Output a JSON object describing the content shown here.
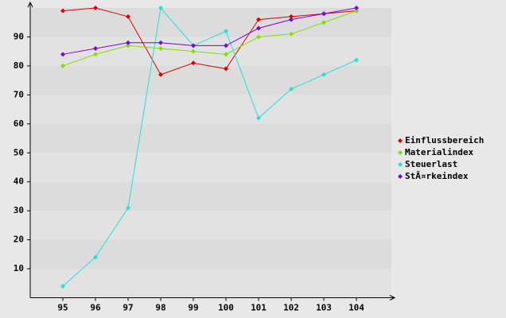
{
  "chart_data": {
    "type": "line",
    "categories": [
      "95",
      "96",
      "97",
      "98",
      "99",
      "100",
      "101",
      "102",
      "103",
      "104"
    ],
    "series": [
      {
        "name": "Einflussbereich",
        "color": "#e00000",
        "values": [
          99,
          100,
          97,
          77,
          81,
          79,
          96,
          97,
          98,
          99
        ]
      },
      {
        "name": "Materialindex",
        "color": "#80e000",
        "values": [
          80,
          84,
          87,
          86,
          85,
          84,
          90,
          91,
          95,
          99
        ]
      },
      {
        "name": "Steuerlast",
        "color": "#20e0e0",
        "values": [
          4,
          14,
          31,
          100,
          87,
          92,
          62,
          72,
          77,
          82
        ]
      },
      {
        "name": "StÃ¤rkeindex",
        "color": "#8000e0",
        "values": [
          84,
          86,
          88,
          88,
          87,
          87,
          93,
          96,
          98,
          100
        ]
      }
    ],
    "ylim": [
      0,
      100
    ],
    "yticks": [
      10,
      20,
      30,
      40,
      50,
      60,
      70,
      80,
      90
    ],
    "legend": "right"
  }
}
